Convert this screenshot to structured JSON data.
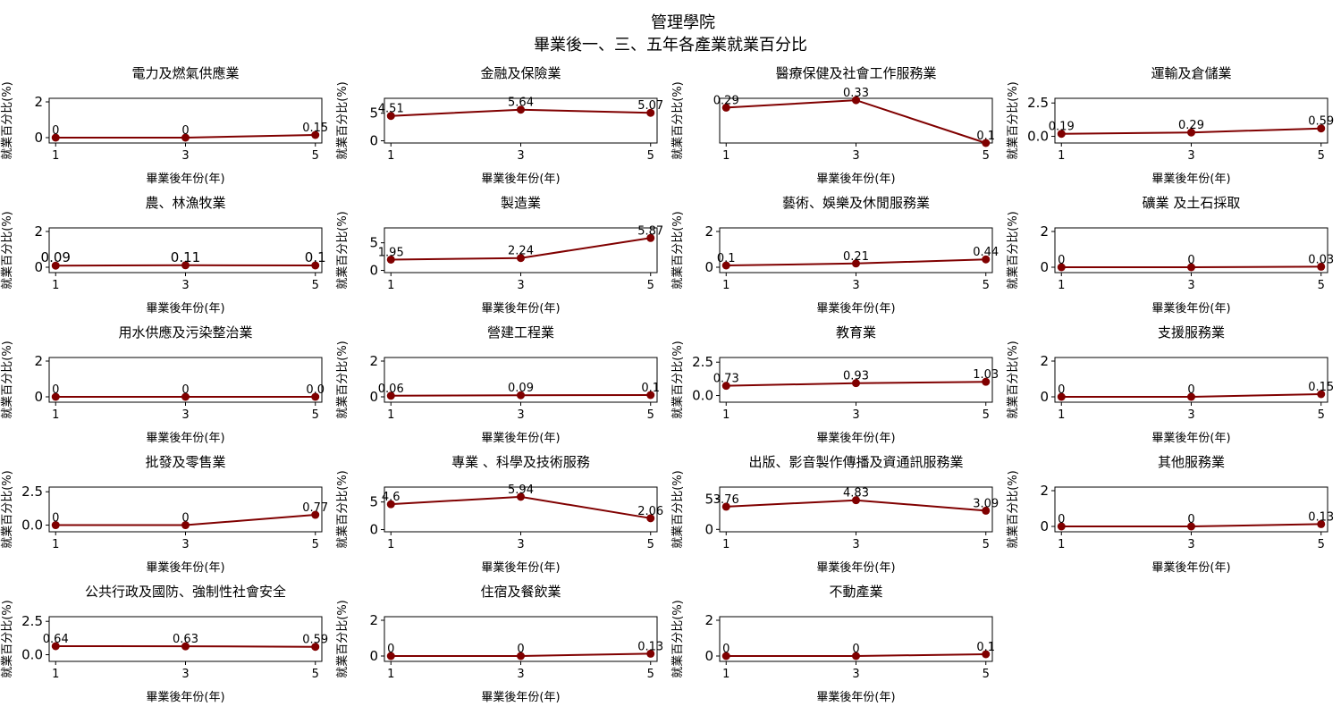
{
  "figure": {
    "title_line1": "管理學院",
    "title_line2": "畢業後一、三、五年各產業就業百分比"
  },
  "colors": {
    "series": "#800000"
  },
  "chart_data": [
    {
      "type": "line",
      "title": "電力及燃氣供應業",
      "xlabel": "畢業後年份(年)",
      "ylabel": "就業百分比(%)",
      "x": [
        1,
        3,
        5
      ],
      "values": [
        0,
        0,
        0.15
      ],
      "labels": [
        "0",
        "0",
        "0.15"
      ],
      "ylim": [
        -0.3,
        2.2
      ],
      "yticks": [
        0,
        2
      ],
      "ytick_labels": [
        "0",
        "2"
      ]
    },
    {
      "type": "line",
      "title": "金融及保險業",
      "xlabel": "畢業後年份(年)",
      "ylabel": "就業百分比(%)",
      "x": [
        1,
        3,
        5
      ],
      "values": [
        4.51,
        5.64,
        5.07
      ],
      "labels": [
        "4.51",
        "5.64",
        "5.07"
      ],
      "ylim": [
        -0.4,
        7.7
      ],
      "yticks": [
        0,
        5
      ],
      "ytick_labels": [
        "0",
        "5"
      ]
    },
    {
      "type": "line",
      "title": "醫療保健及社會工作服務業",
      "xlabel": "畢業後年份(年)",
      "ylabel": "就業百分比(%)",
      "x": [
        1,
        3,
        5
      ],
      "values": [
        0.29,
        0.33,
        0.1
      ],
      "labels": [
        "0.29",
        "0.33",
        "0.1"
      ],
      "ylim": [
        0.1,
        0.34
      ],
      "yticks": [],
      "ytick_labels": []
    },
    {
      "type": "line",
      "title": "運輸及倉儲業",
      "xlabel": "畢業後年份(年)",
      "ylabel": "就業百分比(%)",
      "x": [
        1,
        3,
        5
      ],
      "values": [
        0.19,
        0.29,
        0.59
      ],
      "labels": [
        "0.19",
        "0.29",
        "0.59"
      ],
      "ylim": [
        -0.5,
        2.85
      ],
      "yticks": [
        0,
        2.5
      ],
      "ytick_labels": [
        "0.0",
        "2.5"
      ]
    },
    {
      "type": "line",
      "title": "農、林漁牧業",
      "xlabel": "畢業後年份(年)",
      "ylabel": "就業百分比(%)",
      "x": [
        1,
        3,
        5
      ],
      "values": [
        0.09,
        0.11,
        0.1
      ],
      "labels": [
        "0.09",
        "0.11",
        "0.1"
      ],
      "ylim": [
        -0.3,
        2.2
      ],
      "yticks": [
        0,
        2
      ],
      "ytick_labels": [
        "0",
        "2"
      ],
      "big_labels": true
    },
    {
      "type": "line",
      "title": "製造業",
      "xlabel": "畢業後年份(年)",
      "ylabel": "就業百分比(%)",
      "x": [
        1,
        3,
        5
      ],
      "values": [
        1.95,
        2.24,
        5.87
      ],
      "labels": [
        "1.95",
        "2.24",
        "5.87"
      ],
      "ylim": [
        -0.4,
        7.7
      ],
      "yticks": [
        0,
        5
      ],
      "ytick_labels": [
        "0",
        "5"
      ]
    },
    {
      "type": "line",
      "title": "藝術、娛樂及休閒服務業",
      "xlabel": "畢業後年份(年)",
      "ylabel": "就業百分比(%)",
      "x": [
        1,
        3,
        5
      ],
      "values": [
        0.1,
        0.21,
        0.44
      ],
      "labels": [
        "0.1",
        "0.21",
        "0.44"
      ],
      "ylim": [
        -0.3,
        2.2
      ],
      "yticks": [
        0,
        2
      ],
      "ytick_labels": [
        "0",
        "2"
      ]
    },
    {
      "type": "line",
      "title": "礦業 及土石採取",
      "xlabel": "畢業後年份(年)",
      "ylabel": "就業百分比(%)",
      "x": [
        1,
        3,
        5
      ],
      "values": [
        0,
        0,
        0.03
      ],
      "labels": [
        "0",
        "0",
        "0.03"
      ],
      "ylim": [
        -0.3,
        2.2
      ],
      "yticks": [
        0,
        2
      ],
      "ytick_labels": [
        "0",
        "2"
      ]
    },
    {
      "type": "line",
      "title": "用水供應及污染整治業",
      "xlabel": "畢業後年份(年)",
      "ylabel": "就業百分比(%)",
      "x": [
        1,
        3,
        5
      ],
      "values": [
        0,
        0,
        0
      ],
      "labels": [
        "0",
        "0",
        "0.0"
      ],
      "ylim": [
        -0.3,
        2.2
      ],
      "yticks": [
        0,
        2
      ],
      "ytick_labels": [
        "0",
        "2"
      ]
    },
    {
      "type": "line",
      "title": "營建工程業",
      "xlabel": "畢業後年份(年)",
      "ylabel": "就業百分比(%)",
      "x": [
        1,
        3,
        5
      ],
      "values": [
        0.06,
        0.09,
        0.1
      ],
      "labels": [
        "0.06",
        "0.09",
        "0.1"
      ],
      "ylim": [
        -0.3,
        2.2
      ],
      "yticks": [
        0,
        2
      ],
      "ytick_labels": [
        "0",
        "2"
      ]
    },
    {
      "type": "line",
      "title": "教育業",
      "xlabel": "畢業後年份(年)",
      "ylabel": "就業百分比(%)",
      "x": [
        1,
        3,
        5
      ],
      "values": [
        0.73,
        0.93,
        1.03
      ],
      "labels": [
        "0.73",
        "0.93",
        "1.03"
      ],
      "ylim": [
        -0.5,
        2.85
      ],
      "yticks": [
        0,
        2.5
      ],
      "ytick_labels": [
        "0.0",
        "2.5"
      ]
    },
    {
      "type": "line",
      "title": "支援服務業",
      "xlabel": "畢業後年份(年)",
      "ylabel": "就業百分比(%)",
      "x": [
        1,
        3,
        5
      ],
      "values": [
        0,
        0,
        0.15
      ],
      "labels": [
        "0",
        "0",
        "0.15"
      ],
      "ylim": [
        -0.3,
        2.2
      ],
      "yticks": [
        0,
        2
      ],
      "ytick_labels": [
        "0",
        "2"
      ]
    },
    {
      "type": "line",
      "title": "批發及零售業",
      "xlabel": "畢業後年份(年)",
      "ylabel": "就業百分比(%)",
      "x": [
        1,
        3,
        5
      ],
      "values": [
        0,
        0,
        0.77
      ],
      "labels": [
        "0",
        "0",
        "0.77"
      ],
      "ylim": [
        -0.5,
        2.85
      ],
      "yticks": [
        0,
        2.5
      ],
      "ytick_labels": [
        "0.0",
        "2.5"
      ]
    },
    {
      "type": "line",
      "title": "專業 、科學及技術服務",
      "xlabel": "畢業後年份(年)",
      "ylabel": "就業百分比(%)",
      "x": [
        1,
        3,
        5
      ],
      "values": [
        4.6,
        5.94,
        2.06
      ],
      "labels": [
        "4.6",
        "5.94",
        "2.06"
      ],
      "ylim": [
        -0.4,
        7.7
      ],
      "yticks": [
        0,
        5
      ],
      "ytick_labels": [
        "0",
        "5"
      ]
    },
    {
      "type": "line",
      "title": "出版、影音製作傳播及資通訊服務業",
      "xlabel": "畢業後年份(年)",
      "ylabel": "就業百分比(%)",
      "x": [
        1,
        3,
        5
      ],
      "values": [
        3.76,
        4.83,
        3.09
      ],
      "labels": [
        "3.76",
        "4.83",
        "3.09"
      ],
      "ylim": [
        -0.4,
        7.0
      ],
      "yticks": [
        0,
        5
      ],
      "ytick_labels": [
        "0",
        "5"
      ]
    },
    {
      "type": "line",
      "title": "其他服務業",
      "xlabel": "畢業後年份(年)",
      "ylabel": "就業百分比(%)",
      "x": [
        1,
        3,
        5
      ],
      "values": [
        0,
        0,
        0.13
      ],
      "labels": [
        "0",
        "0",
        "0.13"
      ],
      "ylim": [
        -0.3,
        2.2
      ],
      "yticks": [
        0,
        2
      ],
      "ytick_labels": [
        "0",
        "2"
      ]
    },
    {
      "type": "line",
      "title": "公共行政及國防、強制性社會安全",
      "xlabel": "畢業後年份(年)",
      "ylabel": "就業百分比(%)",
      "x": [
        1,
        3,
        5
      ],
      "values": [
        0.64,
        0.63,
        0.59
      ],
      "labels": [
        "0.64",
        "0.63",
        "0.59"
      ],
      "ylim": [
        -0.5,
        2.85
      ],
      "yticks": [
        0,
        2.5
      ],
      "ytick_labels": [
        "0.0",
        "2.5"
      ]
    },
    {
      "type": "line",
      "title": "住宿及餐飲業",
      "xlabel": "畢業後年份(年)",
      "ylabel": "就業百分比(%)",
      "x": [
        1,
        3,
        5
      ],
      "values": [
        0,
        0,
        0.13
      ],
      "labels": [
        "0",
        "0",
        "0.13"
      ],
      "ylim": [
        -0.3,
        2.2
      ],
      "yticks": [
        0,
        2
      ],
      "ytick_labels": [
        "0",
        "2"
      ]
    },
    {
      "type": "line",
      "title": "不動產業",
      "xlabel": "畢業後年份(年)",
      "ylabel": "就業百分比(%)",
      "x": [
        1,
        3,
        5
      ],
      "values": [
        0,
        0,
        0.1
      ],
      "labels": [
        "0",
        "0",
        "0.1"
      ],
      "ylim": [
        -0.3,
        2.2
      ],
      "yticks": [
        0,
        2
      ],
      "ytick_labels": [
        "0",
        "2"
      ]
    }
  ]
}
